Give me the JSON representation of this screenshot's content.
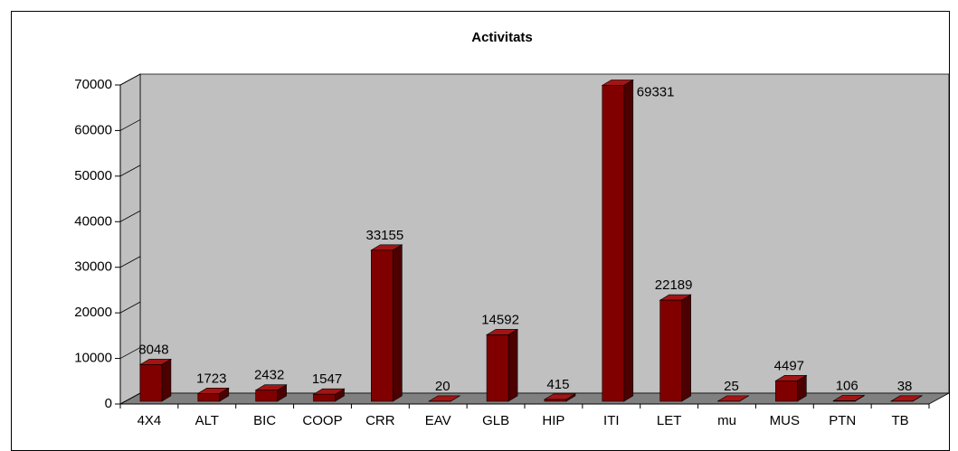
{
  "chart_data": {
    "type": "bar3d",
    "title": "Activitats",
    "categories": [
      "4X4",
      "ALT",
      "BIC",
      "COOP",
      "CRR",
      "EAV",
      "GLB",
      "HIP",
      "ITI",
      "LET",
      "mu",
      "MUS",
      "PTN",
      "TB"
    ],
    "values": [
      8048,
      1723,
      2432,
      1547,
      33155,
      20,
      14592,
      415,
      69331,
      22189,
      25,
      4497,
      106,
      38
    ],
    "color": "#800000",
    "ylim": [
      0,
      70000
    ],
    "yticks": [
      0,
      10000,
      20000,
      30000,
      40000,
      50000,
      60000,
      70000
    ]
  }
}
